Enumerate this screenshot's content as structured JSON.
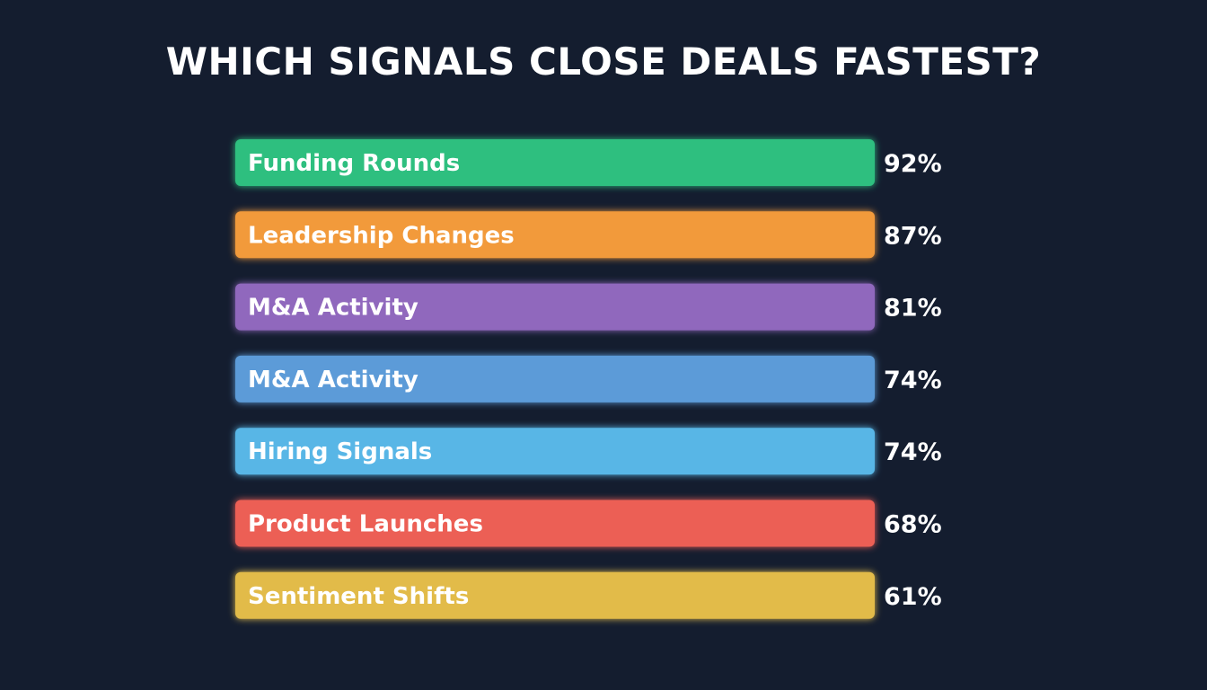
{
  "chart_data": {
    "type": "bar",
    "orientation": "horizontal",
    "title": "WHICH SIGNALS CLOSE DEALS FASTEST?",
    "categories": [
      "Funding Rounds",
      "Leadership Changes",
      "M&A Activity",
      "M&A Activity",
      "Hiring Signals",
      "Product Launches",
      "Sentiment Shifts"
    ],
    "values": [
      92,
      87,
      81,
      74,
      74,
      68,
      61
    ],
    "value_labels": [
      "92%",
      "87%",
      "81%",
      "74%",
      "74%",
      "68%",
      "61%"
    ],
    "colors": [
      "#2fbf7f",
      "#f29a3b",
      "#9068bd",
      "#5b9bd8",
      "#58b6e6",
      "#ec5f55",
      "#e2bb4a"
    ],
    "grid": false,
    "legend": "none"
  },
  "background_color": "#141d2f"
}
